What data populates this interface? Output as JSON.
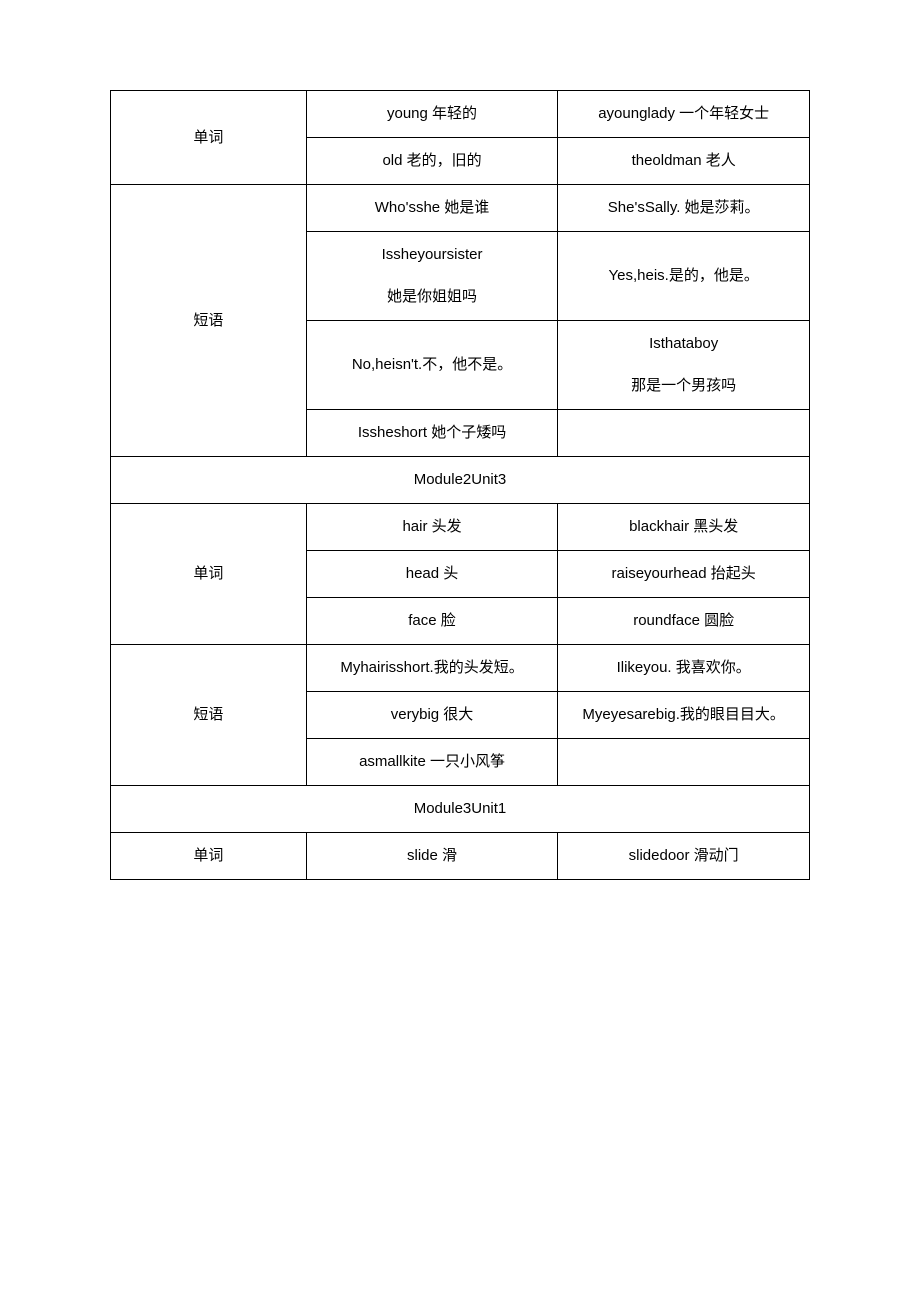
{
  "table": {
    "columns": [
      "c1",
      "c2",
      "c3"
    ],
    "border_color": "#000000",
    "background_color": "#ffffff",
    "font_size": 15,
    "line_height": 2.8,
    "rows": [
      {
        "label": "单词",
        "pairs": [
          {
            "a": "young 年轻的",
            "b": "ayounglady 一个年轻女士"
          },
          {
            "a": "old 老的，旧的",
            "b": "theoldman 老人"
          }
        ]
      },
      {
        "label": "短语",
        "pairs": [
          {
            "a": "Who'sshe 她是谁",
            "b": "She'sSally. 她是莎莉。"
          },
          {
            "a": "Issheyoursister\n她是你姐姐吗",
            "b": "Yes,heis.是的，他是。"
          },
          {
            "a": "No,heisn't.不，他不是。",
            "b": "Isthataboy\n那是一个男孩吗"
          },
          {
            "a": "Issheshort 她个子矮吗",
            "b": ""
          }
        ]
      },
      {
        "header": "Module2Unit3"
      },
      {
        "label": "单词",
        "pairs": [
          {
            "a": "hair 头发",
            "b": "blackhair 黑头发"
          },
          {
            "a": "head 头",
            "b": "raiseyourhead 抬起头"
          },
          {
            "a": "face 脸",
            "b": "roundface 圆脸"
          }
        ]
      },
      {
        "label": "短语",
        "pairs": [
          {
            "a": "Myhairisshort.我的头发短。",
            "b": "Ilikeyou. 我喜欢你。"
          },
          {
            "a": "verybig 很大",
            "b": "Myeyesarebig.我的眼目目大。"
          },
          {
            "a": "asmallkite 一只小风筝",
            "b": ""
          }
        ]
      },
      {
        "header": "Module3Unit1"
      },
      {
        "label": "单词",
        "pairs": [
          {
            "a": "slide 滑",
            "b": "slidedoor 滑动门"
          }
        ]
      }
    ]
  }
}
